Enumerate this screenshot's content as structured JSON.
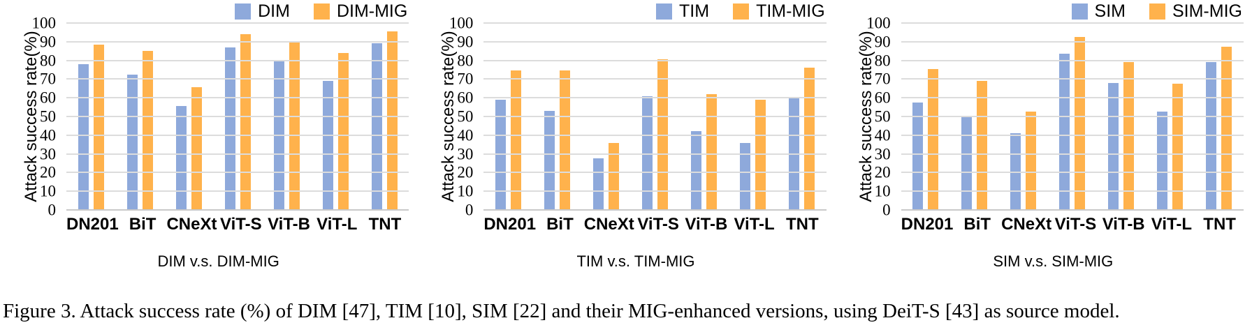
{
  "figure_caption": "Figure 3. Attack success rate (%) of DIM [47], TIM [10], SIM [22] and their MIG-enhanced versions, using DeiT-S [43] as source model.",
  "colors": {
    "bar_blue": "#8EA9DB",
    "bar_orange": "#FFB24C",
    "gridline": "#DCDCDC",
    "baseline": "#C9C9C9"
  },
  "chart_data": [
    {
      "type": "bar",
      "title": "DIM v.s. DIM-MIG",
      "ylabel": "Attack success rate(%)",
      "ylim": [
        0,
        100
      ],
      "ystep": 10,
      "grid": true,
      "legend_position": "top-right",
      "categories": [
        "DN201",
        "BiT",
        "CNeXt",
        "ViT-S",
        "ViT-B",
        "ViT-L",
        "TNT"
      ],
      "series": [
        {
          "name": "DIM",
          "values": [
            78,
            72.5,
            55.5,
            87,
            79.5,
            69,
            89
          ]
        },
        {
          "name": "DIM-MIG",
          "values": [
            88.5,
            85,
            65.5,
            94,
            89.5,
            84,
            95.5
          ]
        }
      ]
    },
    {
      "type": "bar",
      "title": "TIM v.s. TIM-MIG",
      "ylabel": "Attack success rate(%)",
      "ylim": [
        0,
        100
      ],
      "ystep": 10,
      "grid": true,
      "legend_position": "top-right",
      "categories": [
        "DN201",
        "BiT",
        "CNeXt",
        "ViT-S",
        "ViT-B",
        "ViT-L",
        "TNT"
      ],
      "series": [
        {
          "name": "TIM",
          "values": [
            59,
            53,
            27.5,
            61,
            42,
            36,
            60
          ]
        },
        {
          "name": "TIM-MIG",
          "values": [
            74.5,
            74.5,
            36,
            80.5,
            62,
            59,
            76
          ]
        }
      ]
    },
    {
      "type": "bar",
      "title": "SIM v.s. SIM-MIG",
      "ylabel": "Attack success rate(%)",
      "ylim": [
        0,
        100
      ],
      "ystep": 10,
      "grid": true,
      "legend_position": "top-right",
      "categories": [
        "DN201",
        "BiT",
        "CNeXt",
        "ViT-S",
        "ViT-B",
        "ViT-L",
        "TNT"
      ],
      "series": [
        {
          "name": "SIM",
          "values": [
            57.5,
            49.5,
            41,
            83.5,
            68,
            52.5,
            79
          ]
        },
        {
          "name": "SIM-MIG",
          "values": [
            75.5,
            69,
            52.5,
            92.5,
            79,
            67.5,
            87.5
          ]
        }
      ]
    }
  ]
}
